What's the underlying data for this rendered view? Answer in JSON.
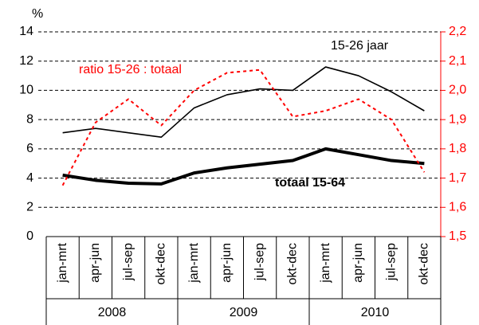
{
  "chart_data": {
    "type": "line",
    "y_unit": "%",
    "categories": [
      "jan-mrt",
      "apr-jun",
      "jul-sep",
      "okt-dec",
      "jan-mrt",
      "apr-jun",
      "jul-sep",
      "okt-dec",
      "jan-mrt",
      "apr-jun",
      "jul-sep",
      "okt-dec"
    ],
    "category_groups": [
      "2008",
      "2009",
      "2010"
    ],
    "series": [
      {
        "name": "15-26 jaar",
        "color": "#000000",
        "values": [
          7.1,
          7.4,
          7.1,
          6.8,
          8.8,
          9.7,
          10.1,
          10.0,
          11.6,
          11.0,
          9.9,
          8.6
        ]
      },
      {
        "name": "totaal 15-64",
        "color": "#000000",
        "values": [
          4.2,
          3.85,
          3.65,
          3.6,
          4.35,
          4.7,
          4.95,
          5.2,
          6.0,
          5.6,
          5.2,
          5.0
        ]
      },
      {
        "name": "ratio 15-26 : totaal",
        "color": "#ff0000",
        "axis": "y2",
        "values": [
          1.675,
          1.89,
          1.97,
          1.88,
          2.0,
          2.06,
          2.07,
          1.91,
          1.93,
          1.97,
          1.9,
          1.72
        ]
      }
    ],
    "ylim": [
      0,
      14
    ],
    "yticks": [
      0,
      2,
      4,
      6,
      8,
      10,
      12,
      14
    ],
    "y2lim": [
      1.5,
      2.2
    ],
    "y2ticks": [
      {
        "value": 1.5,
        "label": "1,5"
      },
      {
        "value": 1.6,
        "label": "1,6"
      },
      {
        "value": 1.7,
        "label": "1,7"
      },
      {
        "value": 1.8,
        "label": "1,8"
      },
      {
        "value": 1.9,
        "label": "1,9"
      },
      {
        "value": 2.0,
        "label": "2,0"
      },
      {
        "value": 2.1,
        "label": "2,1"
      },
      {
        "value": 2.2,
        "label": "2,2"
      }
    ],
    "grid": true
  }
}
